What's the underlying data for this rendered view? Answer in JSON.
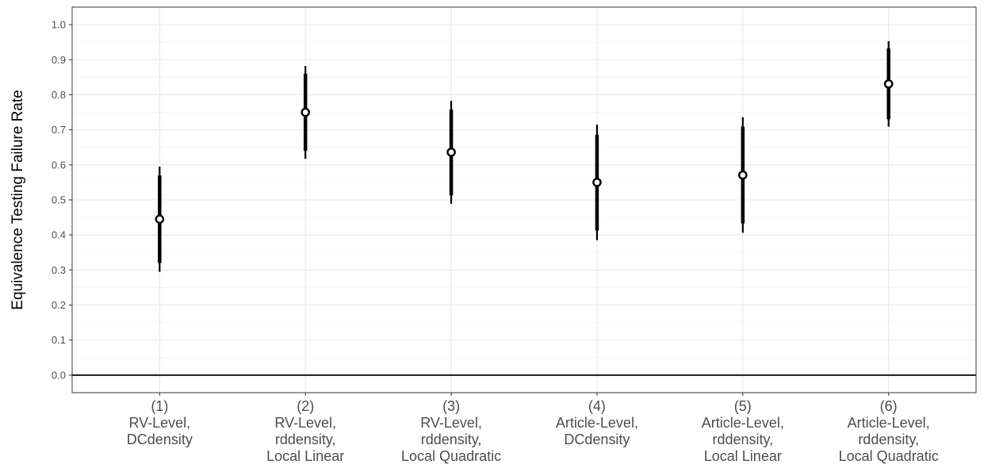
{
  "chart_data": {
    "type": "scatter",
    "title": "",
    "xlabel": "",
    "ylabel": "Equivalence Testing Failure Rate",
    "ylim": [
      -0.05,
      1.05
    ],
    "yticks": [
      0.0,
      0.1,
      0.2,
      0.3,
      0.4,
      0.5,
      0.6,
      0.7,
      0.8,
      0.9,
      1.0
    ],
    "ytick_labels": [
      "0.0",
      "0.1",
      "0.2",
      "0.3",
      "0.4",
      "0.5",
      "0.6",
      "0.7",
      "0.8",
      "0.9",
      "1.0"
    ],
    "reference_line_y": 0.0,
    "grid": true,
    "legend": "none",
    "categories": [
      {
        "lines": [
          "(1)",
          "RV-Level,",
          "DCdensity"
        ]
      },
      {
        "lines": [
          "(2)",
          "RV-Level,",
          "rddensity,",
          "Local Linear"
        ]
      },
      {
        "lines": [
          "(3)",
          "RV-Level,",
          "rddensity,",
          "Local Quadratic"
        ]
      },
      {
        "lines": [
          "(4)",
          "Article-Level,",
          "DCdensity"
        ]
      },
      {
        "lines": [
          "(5)",
          "Article-Level,",
          "rddensity,",
          "Local Linear"
        ]
      },
      {
        "lines": [
          "(6)",
          "Article-Level,",
          "rddensity,",
          "Local Quadratic"
        ]
      }
    ],
    "points": [
      {
        "estimate": 0.445,
        "ci_inner": [
          0.32,
          0.57
        ],
        "ci_outer": [
          0.295,
          0.595
        ]
      },
      {
        "estimate": 0.75,
        "ci_inner": [
          0.64,
          0.86
        ],
        "ci_outer": [
          0.617,
          0.882
        ]
      },
      {
        "estimate": 0.636,
        "ci_inner": [
          0.513,
          0.758
        ],
        "ci_outer": [
          0.489,
          0.783
        ]
      },
      {
        "estimate": 0.55,
        "ci_inner": [
          0.413,
          0.686
        ],
        "ci_outer": [
          0.385,
          0.715
        ]
      },
      {
        "estimate": 0.571,
        "ci_inner": [
          0.433,
          0.709
        ],
        "ci_outer": [
          0.406,
          0.736
        ]
      },
      {
        "estimate": 0.831,
        "ci_inner": [
          0.73,
          0.932
        ],
        "ci_outer": [
          0.709,
          0.953
        ]
      }
    ],
    "colors": {
      "marks": "#000000",
      "grid_major": "#ebebeb",
      "grid_minor": "#f5f5f5",
      "panel_border": "#333333",
      "tick_text": "#4d4d4d"
    }
  }
}
